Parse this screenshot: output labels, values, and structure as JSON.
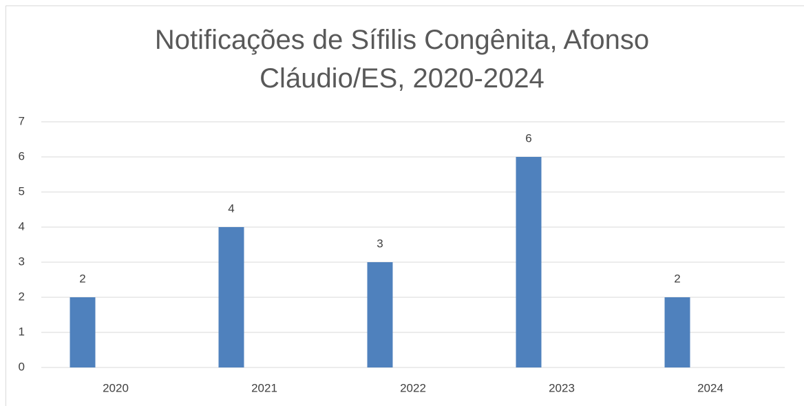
{
  "chart_data": {
    "type": "bar",
    "title": "Notificações de Sífilis Congênita, Afonso Cláudio/ES, 2020-2024",
    "categories": [
      "2020",
      "2021",
      "2022",
      "2023",
      "2024"
    ],
    "values": [
      2,
      4,
      3,
      6,
      2
    ],
    "color": "#4f81bd",
    "ylim": [
      0,
      7
    ],
    "yticks": [
      0,
      1,
      2,
      3,
      4,
      5,
      6,
      7
    ],
    "grid": true
  }
}
